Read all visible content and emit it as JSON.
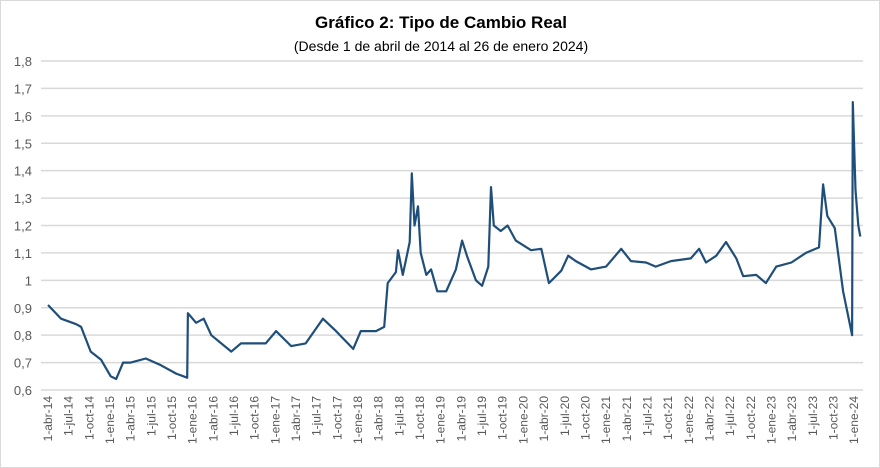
{
  "chart_data": {
    "type": "line",
    "title": "Gráfico 2: Tipo de Cambio Real",
    "subtitle": "(Desde 1 de abril de 2014 al 26 de enero 2024)",
    "xlabel": "",
    "ylabel": "",
    "ylim": [
      0.6,
      1.8
    ],
    "yticks": [
      "0,6",
      "0,7",
      "0,8",
      "0,9",
      "1",
      "1,1",
      "1,2",
      "1,3",
      "1,4",
      "1,5",
      "1,6",
      "1,7",
      "1,8"
    ],
    "x_unit": "months since 1-abr-14",
    "xticks": [
      "1-abr-14",
      "1-jul-14",
      "1-oct-14",
      "1-ene-15",
      "1-abr-15",
      "1-jul-15",
      "1-oct-15",
      "1-ene-16",
      "1-abr-16",
      "1-jul-16",
      "1-oct-16",
      "1-ene-17",
      "1-abr-17",
      "1-jul-17",
      "1-oct-17",
      "1-ene-18",
      "1-abr-18",
      "1-jul-18",
      "1-oct-18",
      "1-ene-19",
      "1-abr-19",
      "1-jul-19",
      "1-oct-19",
      "1-ene-20",
      "1-abr-20",
      "1-jul-20",
      "1-oct-20",
      "1-ene-21",
      "1-abr-21",
      "1-jul-21",
      "1-oct-21",
      "1-ene-22",
      "1-abr-22",
      "1-jul-22",
      "1-oct-22",
      "1-ene-23",
      "1-abr-23",
      "1-jul-23",
      "1-oct-23",
      "1-ene-24"
    ],
    "grid": true,
    "legend": "none",
    "line_color": "#1f4e79",
    "series": [
      {
        "name": "Tipo de Cambio Real",
        "points": [
          [
            0,
            0.91
          ],
          [
            1.9,
            0.86
          ],
          [
            4.1,
            0.84
          ],
          [
            4.8,
            0.83
          ],
          [
            6.2,
            0.74
          ],
          [
            7.7,
            0.71
          ],
          [
            9.1,
            0.65
          ],
          [
            9.9,
            0.64
          ],
          [
            10.9,
            0.7
          ],
          [
            12.0,
            0.7
          ],
          [
            14.2,
            0.715
          ],
          [
            16.4,
            0.69
          ],
          [
            18.6,
            0.66
          ],
          [
            20.2,
            0.645
          ],
          [
            20.3,
            0.88
          ],
          [
            21.5,
            0.845
          ],
          [
            22.6,
            0.86
          ],
          [
            23.7,
            0.8
          ],
          [
            26.6,
            0.74
          ],
          [
            28.0,
            0.77
          ],
          [
            31.6,
            0.77
          ],
          [
            33.1,
            0.815
          ],
          [
            35.3,
            0.76
          ],
          [
            37.4,
            0.77
          ],
          [
            39.9,
            0.86
          ],
          [
            41.8,
            0.815
          ],
          [
            44.3,
            0.75
          ],
          [
            45.4,
            0.815
          ],
          [
            47.6,
            0.815
          ],
          [
            48.8,
            0.83
          ],
          [
            49.3,
            0.99
          ],
          [
            50.5,
            1.03
          ],
          [
            50.8,
            1.11
          ],
          [
            51.5,
            1.02
          ],
          [
            52.5,
            1.14
          ],
          [
            52.8,
            1.39
          ],
          [
            53.2,
            1.2
          ],
          [
            53.7,
            1.27
          ],
          [
            54.1,
            1.1
          ],
          [
            54.9,
            1.02
          ],
          [
            55.6,
            1.04
          ],
          [
            56.5,
            0.96
          ],
          [
            57.8,
            0.96
          ],
          [
            59.2,
            1.04
          ],
          [
            60.1,
            1.145
          ],
          [
            60.8,
            1.09
          ],
          [
            62.1,
            1.0
          ],
          [
            63.0,
            0.98
          ],
          [
            63.9,
            1.05
          ],
          [
            64.3,
            1.34
          ],
          [
            64.7,
            1.2
          ],
          [
            65.7,
            1.18
          ],
          [
            66.7,
            1.2
          ],
          [
            67.9,
            1.145
          ],
          [
            70.1,
            1.11
          ],
          [
            71.6,
            1.115
          ],
          [
            72.7,
            0.99
          ],
          [
            74.5,
            1.035
          ],
          [
            75.5,
            1.09
          ],
          [
            76.6,
            1.07
          ],
          [
            78.8,
            1.04
          ],
          [
            81.0,
            1.05
          ],
          [
            83.2,
            1.115
          ],
          [
            84.6,
            1.07
          ],
          [
            86.8,
            1.065
          ],
          [
            88.2,
            1.05
          ],
          [
            90.4,
            1.07
          ],
          [
            93.3,
            1.08
          ],
          [
            94.5,
            1.115
          ],
          [
            95.5,
            1.065
          ],
          [
            97.0,
            1.09
          ],
          [
            98.4,
            1.14
          ],
          [
            99.9,
            1.08
          ],
          [
            100.9,
            1.015
          ],
          [
            102.8,
            1.02
          ],
          [
            104.2,
            0.99
          ],
          [
            105.7,
            1.05
          ],
          [
            107.9,
            1.065
          ],
          [
            110.0,
            1.1
          ],
          [
            111.9,
            1.12
          ],
          [
            112.5,
            1.35
          ],
          [
            113.1,
            1.235
          ],
          [
            114.2,
            1.19
          ],
          [
            115.4,
            0.96
          ],
          [
            116.3,
            0.85
          ],
          [
            116.7,
            0.8
          ],
          [
            116.8,
            1.65
          ],
          [
            117.2,
            1.33
          ],
          [
            117.6,
            1.2
          ],
          [
            117.9,
            1.16
          ]
        ]
      }
    ]
  }
}
